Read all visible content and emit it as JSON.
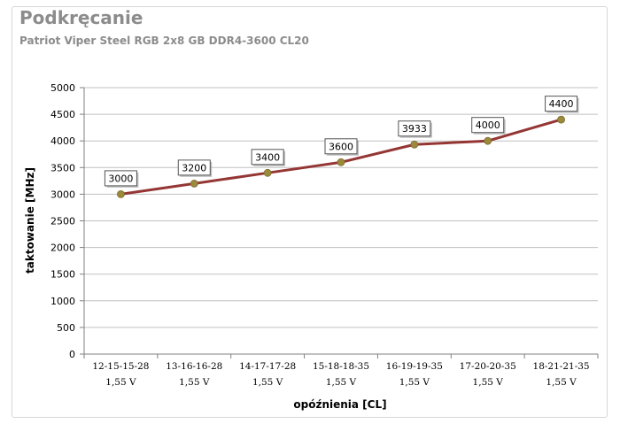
{
  "header": {
    "title": "Podkręcanie",
    "subtitle": "Patriot Viper Steel RGB 2x8 GB DDR4-3600 CL20"
  },
  "chart_data": {
    "type": "line",
    "title": "Podkręcanie",
    "subtitle": "Patriot Viper Steel RGB 2x8 GB DDR4-3600 CL20",
    "xlabel": "opóźnienia [CL]",
    "ylabel": "taktowanie [MHz]",
    "categories": [
      [
        "12-15-15-28",
        "1,55 V"
      ],
      [
        "13-16-16-28",
        "1,55 V"
      ],
      [
        "14-17-17-28",
        "1,55 V"
      ],
      [
        "15-18-18-35",
        "1,55 V"
      ],
      [
        "16-19-19-35",
        "1,55 V"
      ],
      [
        "17-20-20-35",
        "1,55 V"
      ],
      [
        "18-21-21-35",
        "1,55 V"
      ]
    ],
    "values": [
      3000,
      3200,
      3400,
      3600,
      3933,
      4000,
      4400
    ],
    "ylim": [
      0,
      5000
    ],
    "yticks": [
      0,
      500,
      1000,
      1500,
      2000,
      2500,
      3000,
      3500,
      4000,
      4500,
      5000
    ],
    "grid": true,
    "legend": "none",
    "colors": {
      "line": "#943634",
      "marker": "#9c8a3c",
      "grid": "#c0c0c0",
      "label_border": "#555555"
    }
  }
}
